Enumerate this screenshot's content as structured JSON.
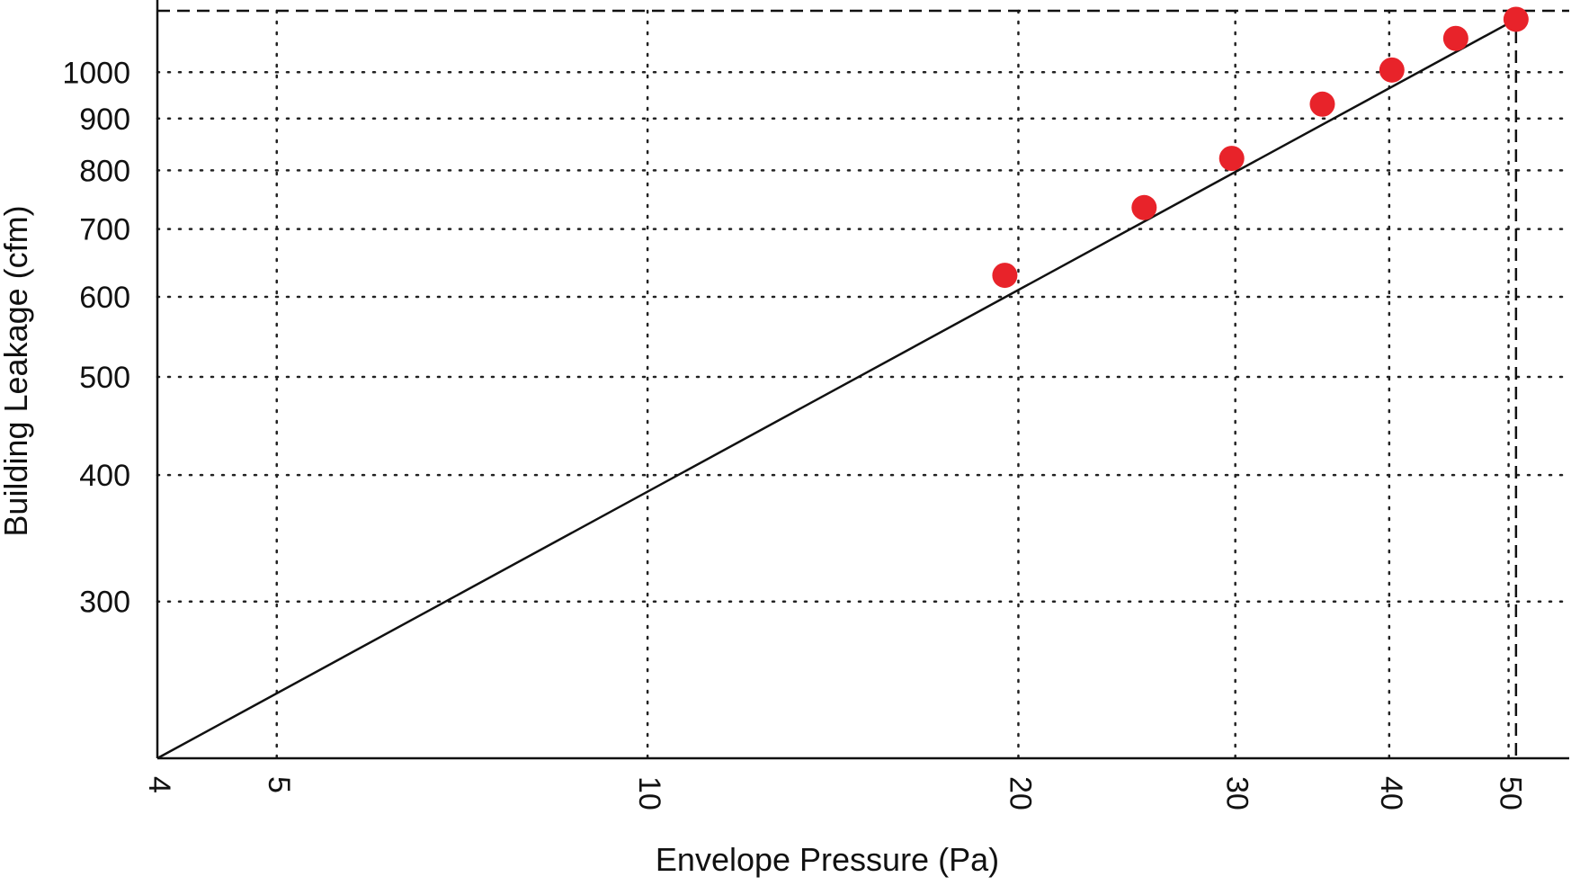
{
  "chart_data": {
    "type": "scatter",
    "xscale": "log",
    "yscale": "log",
    "xlabel": "Envelope Pressure (Pa)",
    "ylabel": "Building Leakage (cfm)",
    "xlim": [
      4,
      56
    ],
    "ylim": [
      210,
      1150
    ],
    "x_ticks": [
      4,
      5,
      10,
      20,
      30,
      40,
      50
    ],
    "x_tick_labels": [
      "4",
      "5",
      "10",
      "20",
      "30",
      "40",
      "50"
    ],
    "y_ticks": [
      300,
      400,
      500,
      600,
      700,
      800,
      900,
      1000
    ],
    "y_tick_labels": [
      "300",
      "400",
      "500",
      "600",
      "700",
      "800",
      "900",
      "1000"
    ],
    "grid": true,
    "series": [
      {
        "type": "scatter",
        "color": "#e8232a",
        "x": [
          19.5,
          25.3,
          29.8,
          35.3,
          40.2,
          45.3,
          50.7
        ],
        "y": [
          630,
          735,
          822,
          930,
          1005,
          1080,
          1128
        ]
      },
      {
        "type": "line",
        "color": "#111111",
        "x": [
          4,
          50.7
        ],
        "y": [
          210,
          1128
        ]
      }
    ],
    "reference_lines": {
      "x": 50.7,
      "y": 1150
    }
  }
}
